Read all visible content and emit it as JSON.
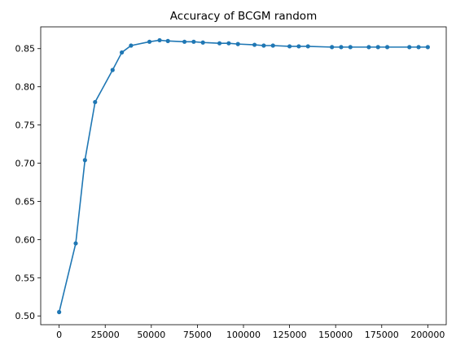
{
  "chart_data": {
    "type": "line",
    "title": "Accuracy of BCGM random",
    "xlabel": "",
    "ylabel": "",
    "xlim": [
      -10000,
      210000
    ],
    "ylim": [
      0.4885,
      0.8785
    ],
    "x_ticks": [
      0,
      25000,
      50000,
      75000,
      100000,
      125000,
      150000,
      175000,
      200000
    ],
    "x_tick_labels": [
      "0",
      "25000",
      "50000",
      "75000",
      "100000",
      "125000",
      "150000",
      "175000",
      "200000"
    ],
    "y_ticks": [
      0.5,
      0.55,
      0.6,
      0.65,
      0.7,
      0.75,
      0.8,
      0.85
    ],
    "y_tick_labels": [
      "0.50",
      "0.55",
      "0.60",
      "0.65",
      "0.70",
      "0.75",
      "0.80",
      "0.85"
    ],
    "grid": false,
    "series": [
      {
        "color": "#1f77b4",
        "marker": "circle",
        "x": [
          0,
          9000,
          14000,
          19500,
          29000,
          34000,
          39000,
          49000,
          54500,
          59000,
          68000,
          73000,
          78000,
          87000,
          92000,
          97000,
          106000,
          111000,
          116000,
          125000,
          130000,
          135000,
          148000,
          153000,
          158000,
          168000,
          173000,
          178000,
          190000,
          195000,
          200000
        ],
        "y": [
          0.505,
          0.595,
          0.704,
          0.78,
          0.822,
          0.845,
          0.854,
          0.859,
          0.861,
          0.86,
          0.859,
          0.859,
          0.858,
          0.857,
          0.857,
          0.856,
          0.855,
          0.854,
          0.854,
          0.853,
          0.853,
          0.853,
          0.852,
          0.852,
          0.852,
          0.852,
          0.852,
          0.852,
          0.852,
          0.852,
          0.852
        ]
      }
    ]
  }
}
